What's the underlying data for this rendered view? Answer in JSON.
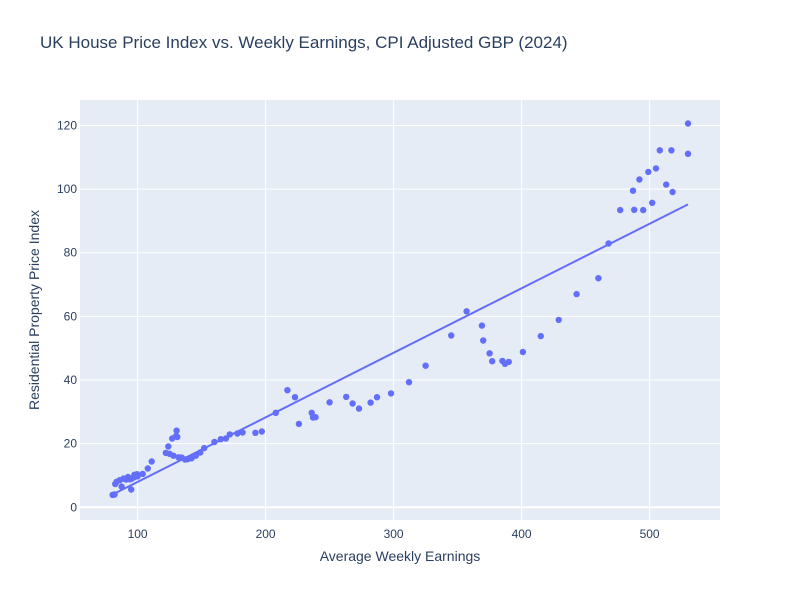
{
  "chart_data": {
    "type": "scatter",
    "title": "UK House Price Index vs. Weekly Earnings, CPI Adjusted GBP (2024)",
    "xlabel": "Average Weekly Earnings",
    "ylabel": "Residential Property Price Index",
    "xlim": [
      55,
      555
    ],
    "ylim": [
      -4,
      128
    ],
    "x_ticks": [
      100,
      200,
      300,
      400,
      500
    ],
    "y_ticks": [
      0,
      20,
      40,
      60,
      80,
      100,
      120
    ],
    "grid": true,
    "legend": "none",
    "colors": {
      "marker": "#636efa",
      "line": "#636efa",
      "plot_bg": "#e5ecf6",
      "grid": "#ffffff",
      "text": "#2a3f5f"
    },
    "series": [
      {
        "mode": "markers",
        "points": [
          [
            80.5,
            3.9
          ],
          [
            82.0,
            4.0
          ],
          [
            82.5,
            7.3
          ],
          [
            83.5,
            8.0
          ],
          [
            86.0,
            8.5
          ],
          [
            87.5,
            6.5
          ],
          [
            89.0,
            9.0
          ],
          [
            91.0,
            8.7
          ],
          [
            92.5,
            9.5
          ],
          [
            94.0,
            8.8
          ],
          [
            95.0,
            5.6
          ],
          [
            95.5,
            9.0
          ],
          [
            97.0,
            9.4
          ],
          [
            97.5,
            10.2
          ],
          [
            99.0,
            9.7
          ],
          [
            99.5,
            10.4
          ],
          [
            100.0,
            9.7
          ],
          [
            104.0,
            10.5
          ],
          [
            108.0,
            12.2
          ],
          [
            111.0,
            14.4
          ],
          [
            122.0,
            17.1
          ],
          [
            124.0,
            19.1
          ],
          [
            125.0,
            16.8
          ],
          [
            127.0,
            21.6
          ],
          [
            128.0,
            16.2
          ],
          [
            130.0,
            22.4
          ],
          [
            130.5,
            24.1
          ],
          [
            131.0,
            22.1
          ],
          [
            132.0,
            15.7
          ],
          [
            134.5,
            15.6
          ],
          [
            137.0,
            15.0
          ],
          [
            139.0,
            15.1
          ],
          [
            142.0,
            15.4
          ],
          [
            145.5,
            16.2
          ],
          [
            149.0,
            17.2
          ],
          [
            152.0,
            18.6
          ],
          [
            160.0,
            20.5
          ],
          [
            165.0,
            21.4
          ],
          [
            169.0,
            21.6
          ],
          [
            172.0,
            22.9
          ],
          [
            178.0,
            23.2
          ],
          [
            182.0,
            23.5
          ],
          [
            192.0,
            23.4
          ],
          [
            197.0,
            23.8
          ],
          [
            208.0,
            29.7
          ],
          [
            217.0,
            36.8
          ],
          [
            223.0,
            34.6
          ],
          [
            226.0,
            26.2
          ],
          [
            236.0,
            29.7
          ],
          [
            237.0,
            28.2
          ],
          [
            239.0,
            28.3
          ],
          [
            250.0,
            33.0
          ],
          [
            263.0,
            34.7
          ],
          [
            268.0,
            32.6
          ],
          [
            273.0,
            31.0
          ],
          [
            282.0,
            32.9
          ],
          [
            287.0,
            34.6
          ],
          [
            298.0,
            35.8
          ],
          [
            312.0,
            39.3
          ],
          [
            325.0,
            44.5
          ],
          [
            345.0,
            54.0
          ],
          [
            357.0,
            61.6
          ],
          [
            369.0,
            57.1
          ],
          [
            370.0,
            52.4
          ],
          [
            375.0,
            48.4
          ],
          [
            377.0,
            45.9
          ],
          [
            385.0,
            46.0
          ],
          [
            387.0,
            45.1
          ],
          [
            390.0,
            45.7
          ],
          [
            401.0,
            48.8
          ],
          [
            415.0,
            53.8
          ],
          [
            429.0,
            58.9
          ],
          [
            443.0,
            67.0
          ],
          [
            460.0,
            72.0
          ],
          [
            468.0,
            82.9
          ],
          [
            477.0,
            93.4
          ],
          [
            487.0,
            99.5
          ],
          [
            488.0,
            93.5
          ],
          [
            492.0,
            103.0
          ],
          [
            495.0,
            93.4
          ],
          [
            499.0,
            105.4
          ],
          [
            502.0,
            95.7
          ],
          [
            505.0,
            106.5
          ],
          [
            508.0,
            112.2
          ],
          [
            513.0,
            101.4
          ],
          [
            517.0,
            112.2
          ],
          [
            518.0,
            99.1
          ],
          [
            530.0,
            120.6
          ],
          [
            530.0,
            111.1
          ]
        ]
      },
      {
        "mode": "lines",
        "points": [
          [
            80.5,
            4.0
          ],
          [
            530.0,
            95.2
          ]
        ]
      }
    ]
  }
}
